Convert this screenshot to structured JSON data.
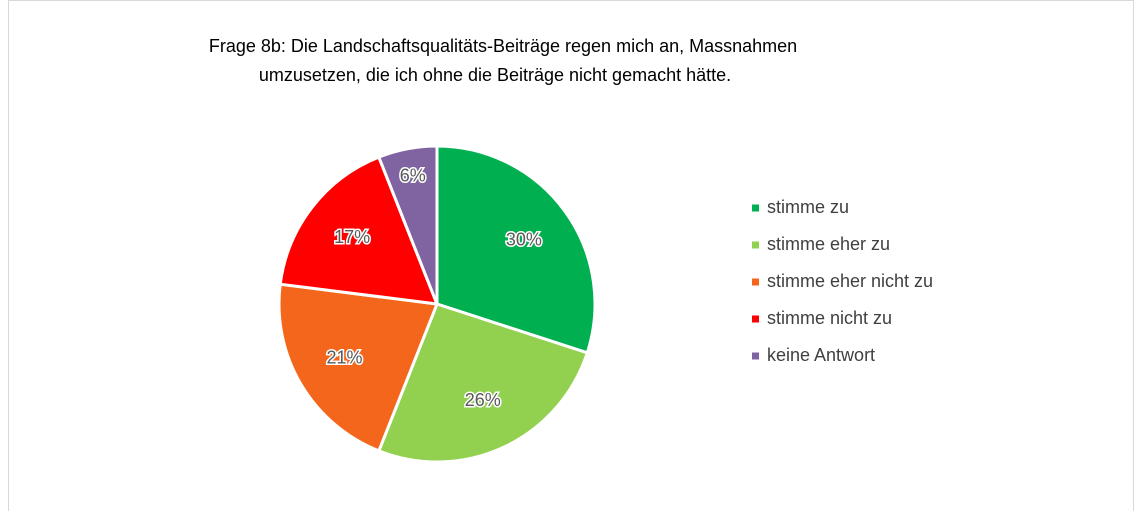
{
  "chart_data": {
    "type": "pie",
    "title": [
      "Frage 8b: Die Landschaftsqualitäts-Beiträge regen mich an, Massnahmen",
      "umzusetzen, die ich ohne die Beiträge nicht gemacht hätte."
    ],
    "categories": [
      "stimme zu",
      "stimme eher zu",
      "stimme eher nicht zu",
      "stimme nicht zu",
      "keine Antwort"
    ],
    "values": [
      30,
      26,
      21,
      17,
      6
    ],
    "value_labels": [
      "30%",
      "26%",
      "21%",
      "17%",
      "6%"
    ],
    "colors": [
      "#00b050",
      "#92d050",
      "#f4661b",
      "#ff0000",
      "#8064a2"
    ],
    "legend": "right"
  }
}
